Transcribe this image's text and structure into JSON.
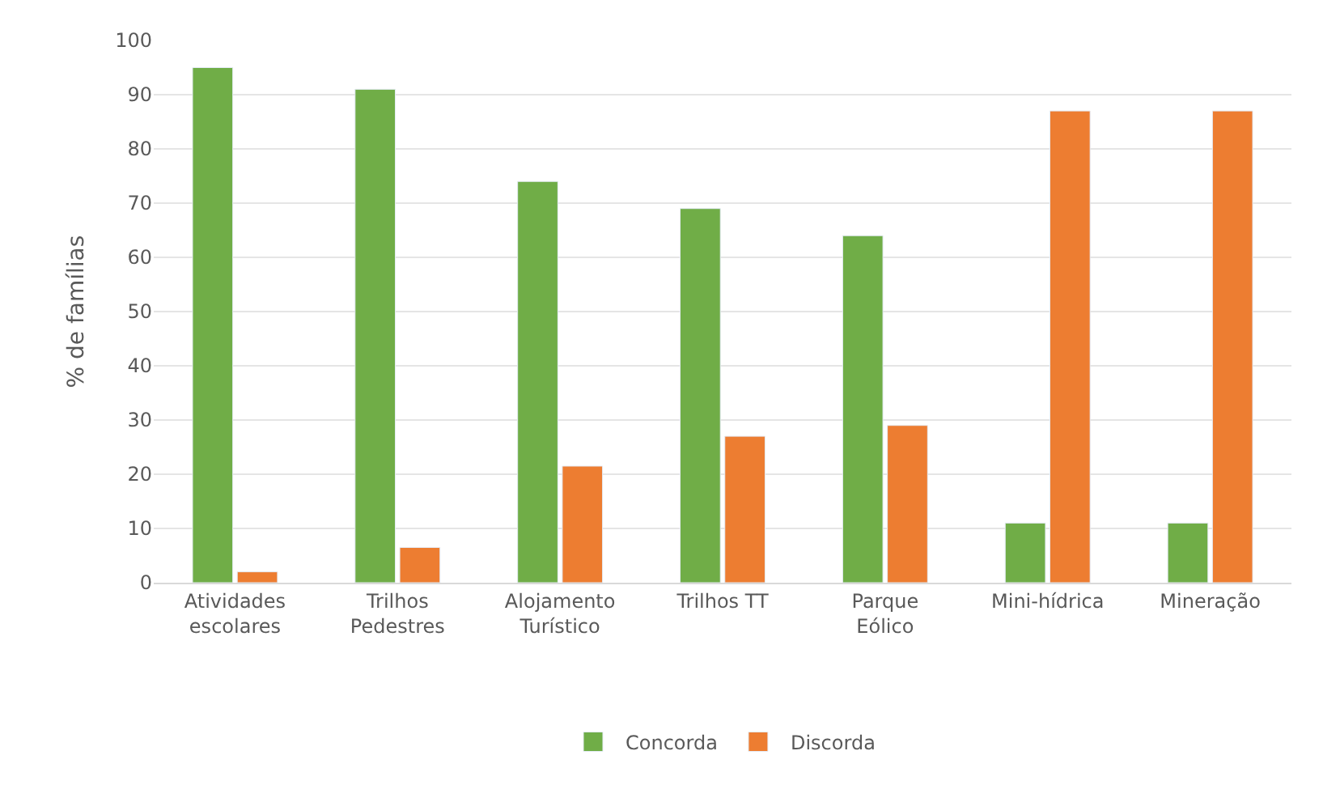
{
  "chart_data": {
    "type": "bar",
    "ylabel": "% de famílias",
    "categories": [
      "Atividades escolares",
      "Trilhos Pedestres",
      "Alojamento Turístico",
      "Trilhos TT",
      "Parque Eólico",
      "Mini-hídrica",
      "Mineração"
    ],
    "series": [
      {
        "name": "Concorda",
        "color": "#70ad47",
        "values": [
          95,
          91,
          74,
          69,
          64,
          11,
          11
        ]
      },
      {
        "name": "Discorda",
        "color": "#ed7d31",
        "values": [
          2,
          6.5,
          21.5,
          27,
          29,
          87,
          87
        ]
      }
    ],
    "ylim": [
      0,
      100
    ],
    "yticks": [
      0,
      10,
      20,
      30,
      40,
      50,
      60,
      70,
      80,
      90,
      100
    ],
    "grid": "y",
    "legend": "bottom"
  }
}
